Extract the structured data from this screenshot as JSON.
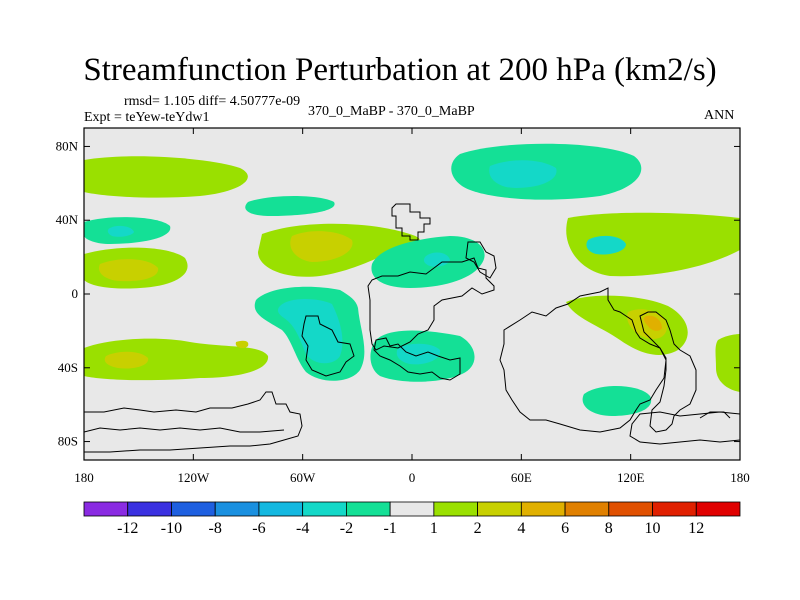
{
  "title": "Streamfunction Perturbation at 200 hPa (km2/s)",
  "stats": "rmsd= 1.105 diff= 4.50777e-09",
  "experiment": "Expt = teYew-teYdw1",
  "case_label": "370_0_MaBP - 370_0_MaBP",
  "season": "ANN",
  "axes": {
    "lat_ticks": [
      {
        "label": "80N",
        "value": 80
      },
      {
        "label": "40N",
        "value": 40
      },
      {
        "label": "0",
        "value": 0
      },
      {
        "label": "40S",
        "value": -40
      },
      {
        "label": "80S",
        "value": -80
      }
    ],
    "lon_ticks": [
      {
        "label": "180",
        "value": -180
      },
      {
        "label": "120W",
        "value": -120
      },
      {
        "label": "60W",
        "value": -60
      },
      {
        "label": "0",
        "value": 0
      },
      {
        "label": "60E",
        "value": 60
      },
      {
        "label": "120E",
        "value": 120
      },
      {
        "label": "180",
        "value": 180
      }
    ],
    "lat_range": [
      -90,
      90
    ],
    "lon_range": [
      -180,
      180
    ]
  },
  "colorbar": {
    "labels": [
      "-12",
      "-10",
      "-8",
      "-6",
      "-4",
      "-2",
      "-1",
      "1",
      "2",
      "4",
      "6",
      "8",
      "10",
      "12"
    ],
    "colors": [
      "#8a2be2",
      "#3a30e0",
      "#1e5fe0",
      "#1a90e0",
      "#14b8e0",
      "#14d8c8",
      "#14e096",
      "#e8e8e8",
      "#9ae000",
      "#c8d000",
      "#e0b000",
      "#e08000",
      "#e05000",
      "#e02000",
      "#e00000"
    ]
  },
  "colors": {
    "background_field": "#e8e8e8",
    "green_pos": "#9ae000",
    "yellow_pos": "#c8d000",
    "green_neg": "#14e096",
    "teal_neg": "#14d8c8",
    "cyan_neg": "#14b8e0",
    "orange_pos": "#e0b000"
  }
}
